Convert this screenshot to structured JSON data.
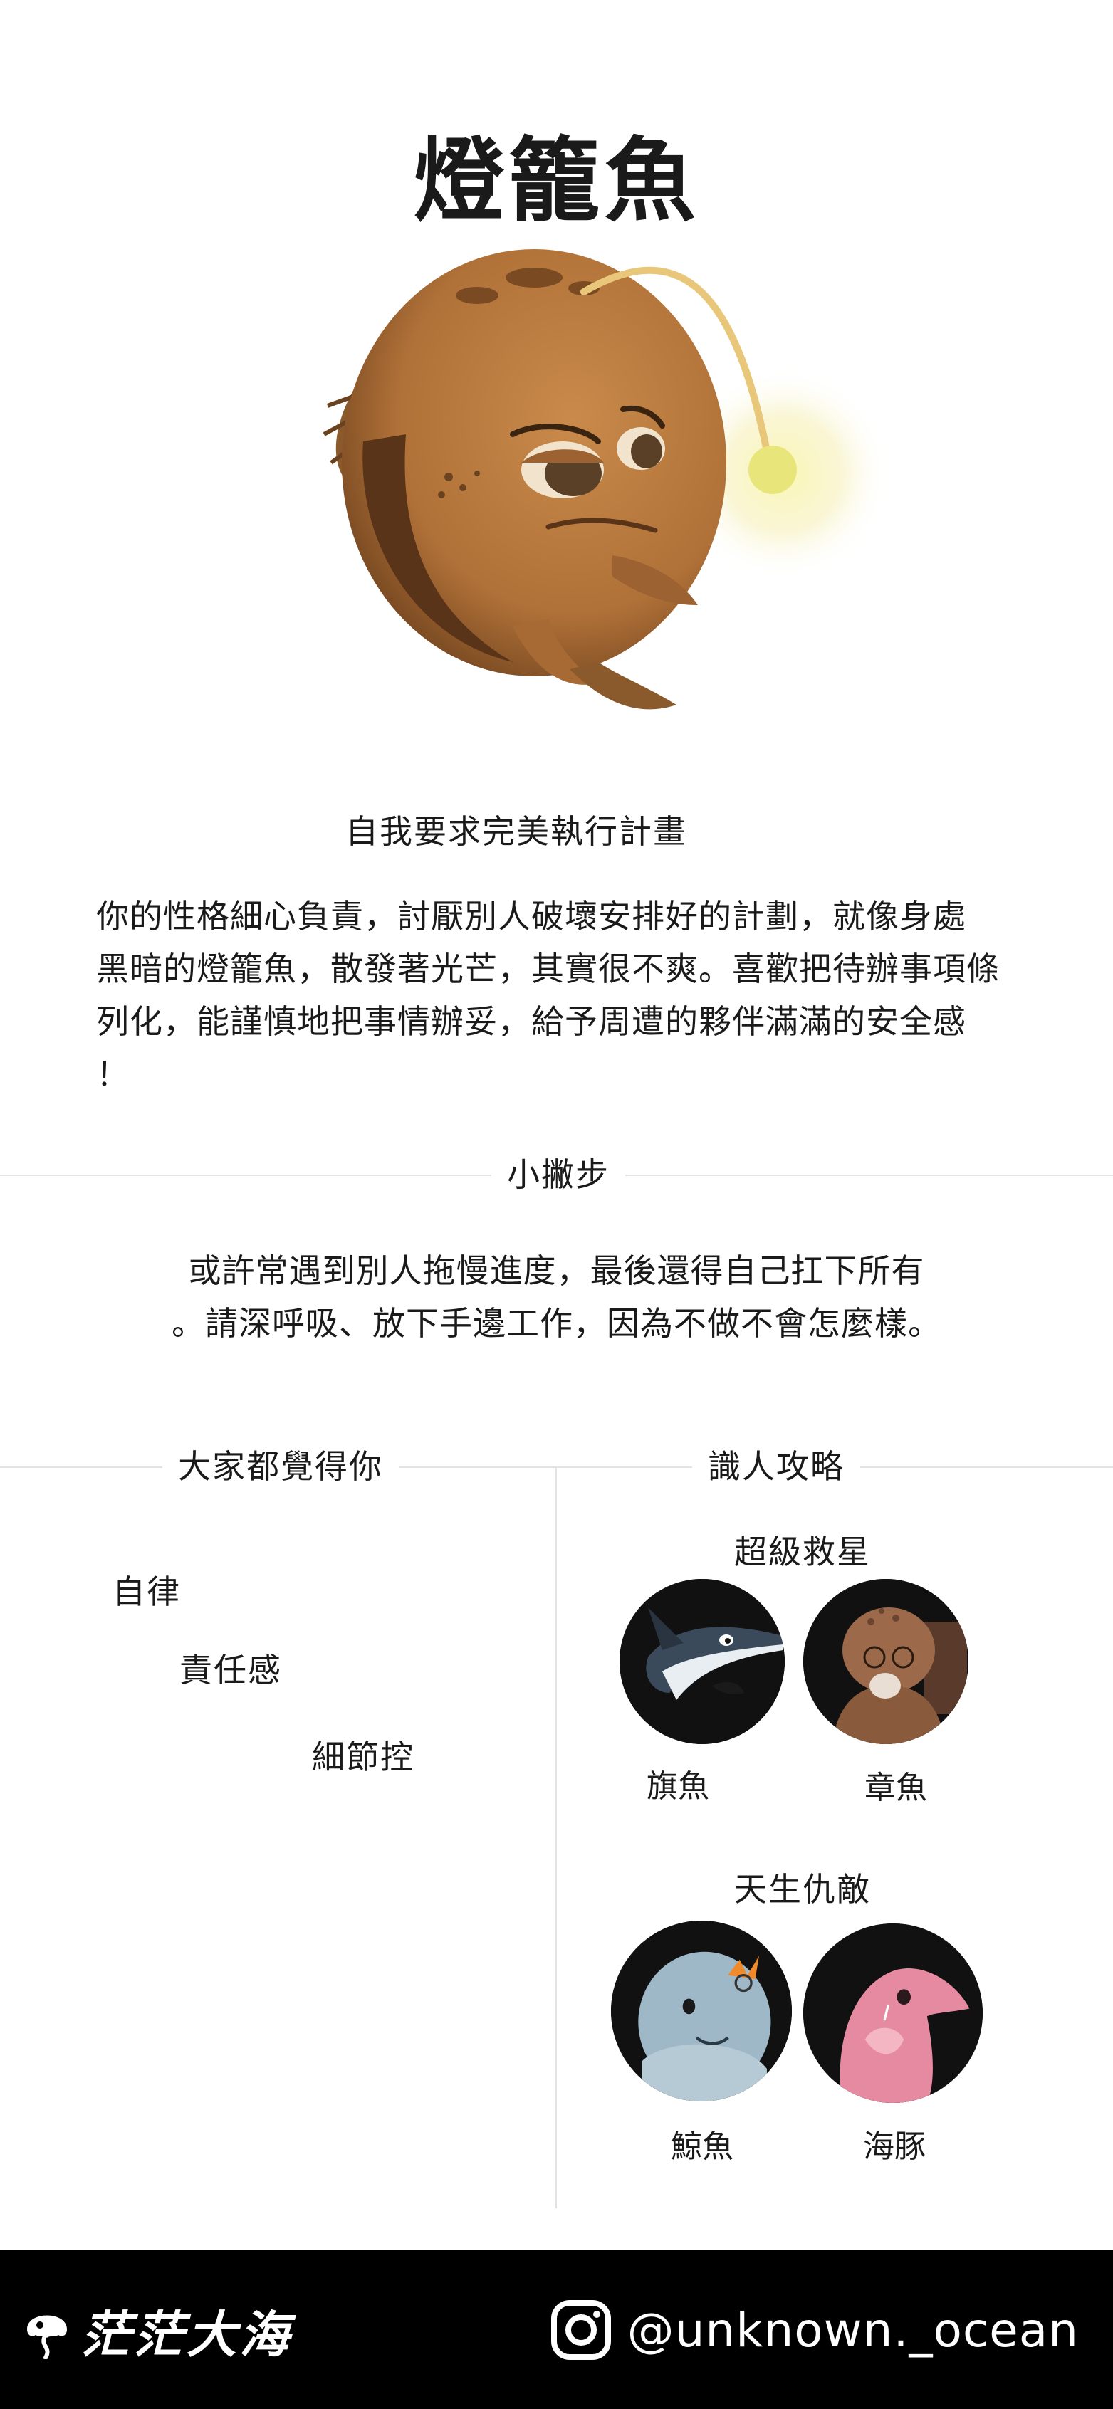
{
  "title": "燈籠魚",
  "subtitle": "自我要求完美執行計畫",
  "description": [
    "你的性格細心負責，討厭別人破壞安排好的計劃，就像身處",
    "黑暗的燈籠魚，散發著光芒，其實很不爽。喜歡把待辦事項條",
    "列化，能謹慎地把事情辦妥，給予周遭的夥伴滿滿的安全感",
    "！"
  ],
  "tip_section": {
    "label": "小撇步",
    "text": [
      "或許常遇到別人拖慢進度，最後還得自己扛下所有",
      "。請深呼吸、放下手邊工作，因為不做不會怎麼樣。"
    ]
  },
  "traits": {
    "label": "大家都覺得你",
    "items": [
      "自律",
      "責任感",
      "細節控"
    ]
  },
  "guide": {
    "label": "識人攻略",
    "saviors": {
      "title": "超級救星",
      "items": [
        {
          "name": "旗魚",
          "icon": "swordfish-avatar-icon"
        },
        {
          "name": "章魚",
          "icon": "octopus-avatar-icon"
        }
      ]
    },
    "enemies": {
      "title": "天生仇敵",
      "items": [
        {
          "name": "鯨魚",
          "icon": "whale-avatar-icon"
        },
        {
          "name": "海豚",
          "icon": "dolphin-avatar-icon"
        }
      ]
    }
  },
  "footer": {
    "brand": "茫茫大海",
    "handle": "@unknown._ocean",
    "brand_icon": "jellyfish-logo-icon",
    "social_icon": "instagram-icon"
  }
}
